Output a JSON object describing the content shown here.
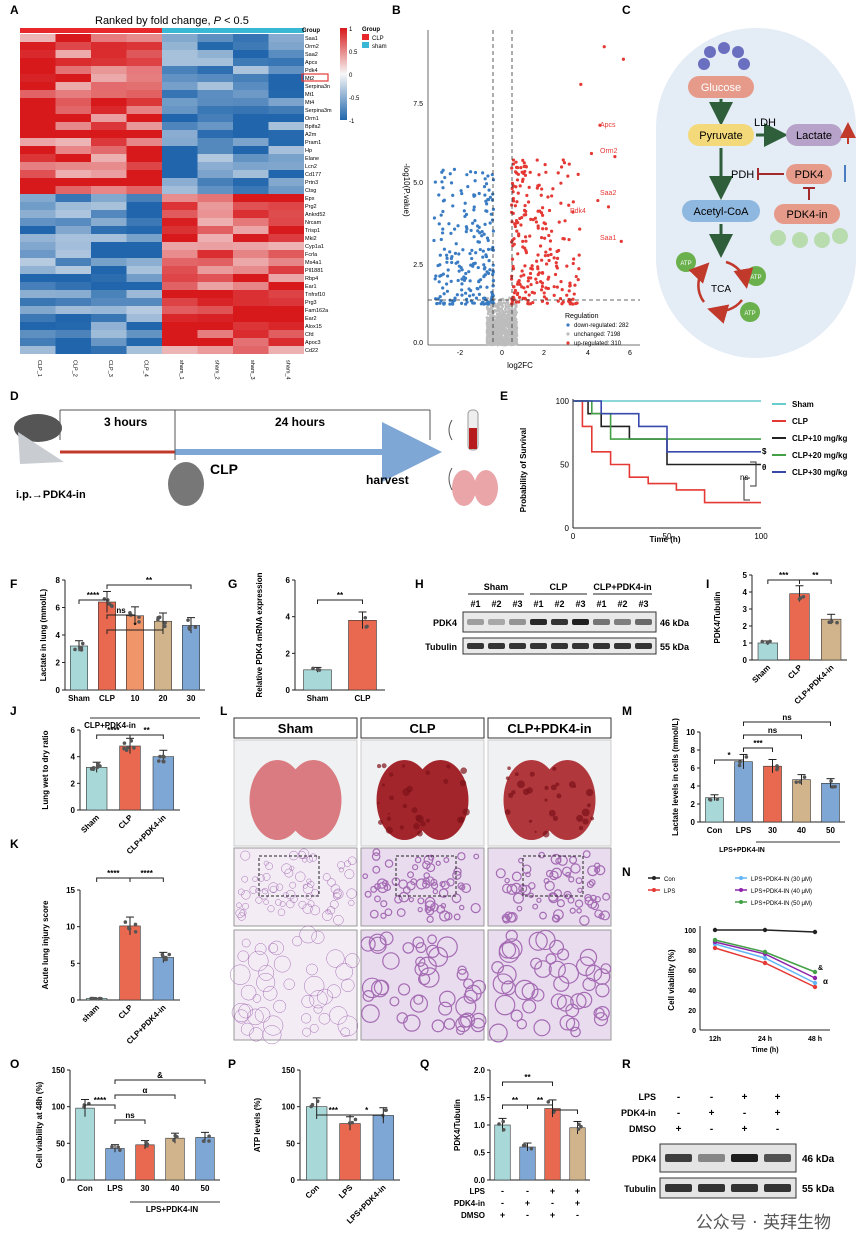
{
  "panels": {
    "A": {
      "label": "A",
      "title_pre": "Ranked by fold change,",
      "title_p": "P",
      "title_post": " < 0.5",
      "genes": [
        "Saa1",
        "Orm2",
        "Saa2",
        "Apcs",
        "Pdk4",
        "Mt2",
        "Serpina3n",
        "Mt1",
        "Mt4",
        "Serpina3m",
        "Orm1",
        "Bpifa2",
        "A2m",
        "Pram1",
        "Hp",
        "Elane",
        "Lcn2",
        "Cd177",
        "Prtn3",
        "Ctsg",
        "Epx",
        "Prg2",
        "Ankrd52",
        "Nrcam",
        "Trisp1",
        "Mki2",
        "Cyp1a1",
        "Fcrla",
        "Ms4a1",
        "Pll1881",
        "Rbp4",
        "Ear1",
        "Tnfrsf10",
        "Prg3",
        "Fam162a",
        "Ear2",
        "Alox15",
        "Cfd",
        "Apoc3",
        "Cd22"
      ],
      "samples": [
        "CLP_1",
        "CLP_2",
        "CLP_3",
        "CLP_4",
        "sham_1",
        "sham_2",
        "sham_3",
        "sham_4"
      ],
      "scale_ticks": [
        "1",
        "0.5",
        "0",
        "-0.5",
        "-1"
      ],
      "legend_title": "Group",
      "legend_items": [
        {
          "name": "CLP",
          "color": "#e8272a"
        },
        {
          "name": "sham",
          "color": "#39b8d6"
        }
      ],
      "group_label": "Group"
    },
    "B": {
      "label": "B",
      "ylabel": "-log10(P.value)",
      "xlabel": "log2FC",
      "xticks": [
        "-2",
        "0",
        "2",
        "4",
        "6"
      ],
      "yticks": [
        "0.0",
        "2.5",
        "5.0",
        "7.5"
      ],
      "annot": [
        "Apcs",
        "Orm2",
        "Saa2",
        "Pdk4",
        "Saa1"
      ],
      "legend_title": "Regulation",
      "legend": [
        "down-regulated: 282",
        "unchanged: 7198",
        "up-regulated: 310"
      ]
    },
    "C": {
      "label": "C",
      "nodes": {
        "glucose": "Glucose",
        "pyruvate": "Pyruvate",
        "lactate": "Lactate",
        "ldh": "LDH",
        "pdh": "PDH",
        "pdk4": "PDK4",
        "acetyl": "Acetyl-CoA",
        "inhib": "PDK4-in",
        "tca": "TCA",
        "atp": "ATP"
      }
    },
    "D": {
      "label": "D",
      "t1": "3 hours",
      "t2": "24 hours",
      "clp": "CLP",
      "harvest": "harvest",
      "ip": "i.p.→PDK4-in"
    },
    "E": {
      "label": "E",
      "ylabel": "Probability of Survival",
      "xlabel": "Time (h)",
      "xticks": [
        "0",
        "50",
        "100"
      ],
      "yticks": [
        "0",
        "50",
        "100"
      ],
      "legend": [
        {
          "name": "Sham",
          "color": "#66cccc"
        },
        {
          "name": "CLP",
          "color": "#e53935"
        },
        {
          "name": "CLP+10 mg/kg",
          "color": "#222222"
        },
        {
          "name": "CLP+20 mg/kg",
          "color": "#43a047"
        },
        {
          "name": "CLP+30 mg/kg",
          "color": "#3949ab"
        }
      ],
      "sig": [
        "$",
        "θ",
        "ns"
      ]
    },
    "F": {
      "label": "F",
      "ylabel": "Lactate in lung (mmol/L)",
      "yticks": [
        "0",
        "2",
        "4",
        "6",
        "8"
      ],
      "cats": [
        "Sham",
        "CLP",
        "10",
        "20",
        "30"
      ],
      "group": "CLP+PDK4-in",
      "sig": [
        "****",
        "ns",
        "*",
        "**"
      ]
    },
    "G": {
      "label": "G",
      "ylabel": "Relative PDK4 mRNA expression",
      "yticks": [
        "0",
        "2",
        "4",
        "6"
      ],
      "cats": [
        "Sham",
        "CLP"
      ],
      "sig": [
        "**"
      ]
    },
    "H": {
      "label": "H",
      "groups": [
        "Sham",
        "CLP",
        "CLP+PDK4-in"
      ],
      "lanes": [
        "#1",
        "#2",
        "#3",
        "#1",
        "#2",
        "#3",
        "#1",
        "#2",
        "#3"
      ],
      "rows": [
        "PDK4",
        "Tubulin"
      ],
      "kda": [
        "46 kDa",
        "55 kDa"
      ]
    },
    "I": {
      "label": "I",
      "ylabel": "PDK4/Tubulin",
      "yticks": [
        "0",
        "1",
        "2",
        "3",
        "4",
        "5"
      ],
      "cats": [
        "Sham",
        "CLP",
        "CLP+PDK4-in"
      ],
      "sig": [
        "***",
        "**"
      ]
    },
    "J": {
      "label": "J",
      "ylabel": "Lung wet to dry ratio",
      "yticks": [
        "0",
        "2",
        "4",
        "6"
      ],
      "cats": [
        "Sham",
        "CLP",
        "CLP+PDK4-in"
      ],
      "sig": [
        "****",
        "**"
      ]
    },
    "K": {
      "label": "K",
      "ylabel": "Acute lung injury score",
      "yticks": [
        "0",
        "5",
        "10",
        "15"
      ],
      "cats": [
        "sham",
        "CLP",
        "CLP+PDK4-in"
      ],
      "sig": [
        "****",
        "****"
      ]
    },
    "L": {
      "label": "L",
      "cols": [
        "Sham",
        "CLP",
        "CLP+PDK4-in"
      ]
    },
    "M": {
      "label": "M",
      "ylabel": "Lactate levels in cells (mmol/L)",
      "yticks": [
        "0",
        "2",
        "4",
        "6",
        "8",
        "10"
      ],
      "cats": [
        "Con",
        "LPS",
        "30",
        "40",
        "50"
      ],
      "group": "LPS+PDK4-IN",
      "sig": [
        "***",
        "ns",
        "ns",
        "*"
      ]
    },
    "N": {
      "label": "N",
      "ylabel": "Cell viability (%)",
      "xlabel": "Time (h)",
      "xticks": [
        "12h",
        "24 h",
        "48 h"
      ],
      "yticks": [
        "0",
        "20",
        "40",
        "60",
        "80",
        "100"
      ],
      "legend": [
        {
          "name": "Con",
          "color": "#222222"
        },
        {
          "name": "LPS",
          "color": "#e53935"
        },
        {
          "name": "LPS+PDK4-IN (30 μM)",
          "color": "#64b5f6"
        },
        {
          "name": "LPS+PDK4-IN (40 μM)",
          "color": "#8e24aa"
        },
        {
          "name": "LPS+PDK4-IN (50 μM)",
          "color": "#43a047"
        }
      ],
      "sig": [
        "&",
        "α"
      ]
    },
    "O": {
      "label": "O",
      "ylabel": "Cell viability at 48h (%)",
      "yticks": [
        "0",
        "50",
        "100",
        "150"
      ],
      "cats": [
        "Con",
        "LPS",
        "30",
        "40",
        "50"
      ],
      "group": "LPS+PDK4-IN",
      "sig": [
        "****",
        "ns",
        "α",
        "&"
      ]
    },
    "P": {
      "label": "P",
      "ylabel": "ATP levels (%)",
      "yticks": [
        "0",
        "50",
        "100",
        "150"
      ],
      "cats": [
        "Con",
        "LPS",
        "LPS+PDK4-in"
      ],
      "sig": [
        "***",
        "*"
      ]
    },
    "Q": {
      "label": "Q",
      "ylabel": "PDK4/Tubulin",
      "yticks": [
        "0.0",
        "0.5",
        "1.0",
        "1.5",
        "2.0"
      ],
      "rows": [
        {
          "name": "LPS",
          "vals": [
            "-",
            "-",
            "+",
            "+"
          ]
        },
        {
          "name": "PDK4-in",
          "vals": [
            "-",
            "+",
            "-",
            "+"
          ]
        },
        {
          "name": "DMSO",
          "vals": [
            "+",
            "-",
            "+",
            "-"
          ]
        }
      ],
      "sig": [
        "**",
        "**",
        "**"
      ]
    },
    "R": {
      "label": "R",
      "rows": [
        {
          "name": "LPS",
          "vals": [
            "-",
            "-",
            "+",
            "+"
          ]
        },
        {
          "name": "PDK4-in",
          "vals": [
            "-",
            "+",
            "-",
            "+"
          ]
        },
        {
          "name": "DMSO",
          "vals": [
            "+",
            "-",
            "+",
            "-"
          ]
        }
      ],
      "blots": [
        "PDK4",
        "Tubulin"
      ],
      "kda": [
        "46 kDa",
        "55 kDa"
      ]
    }
  },
  "watermark": "公众号 · 英拜生物",
  "chart_data": [
    {
      "type": "bar",
      "id": "F",
      "categories": [
        "Sham",
        "CLP",
        "10",
        "20",
        "30"
      ],
      "values": [
        3.2,
        6.4,
        5.4,
        5.0,
        4.7
      ],
      "ylabel": "Lactate in lung (mmol/L)",
      "ylim": [
        0,
        8
      ]
    },
    {
      "type": "bar",
      "id": "G",
      "categories": [
        "Sham",
        "CLP"
      ],
      "values": [
        1.1,
        3.8
      ],
      "ylabel": "Relative PDK4 mRNA expression",
      "ylim": [
        0,
        6
      ]
    },
    {
      "type": "bar",
      "id": "I",
      "categories": [
        "Sham",
        "CLP",
        "CLP+PDK4-in"
      ],
      "values": [
        1.0,
        3.9,
        2.4
      ],
      "ylabel": "PDK4/Tubulin",
      "ylim": [
        0,
        5
      ]
    },
    {
      "type": "bar",
      "id": "J",
      "categories": [
        "Sham",
        "CLP",
        "CLP+PDK4-in"
      ],
      "values": [
        3.2,
        4.8,
        4.0
      ],
      "ylabel": "Lung wet to dry ratio",
      "ylim": [
        0,
        6
      ]
    },
    {
      "type": "bar",
      "id": "K",
      "categories": [
        "sham",
        "CLP",
        "CLP+PDK4-in"
      ],
      "values": [
        0.2,
        10.1,
        5.8
      ],
      "ylabel": "Acute lung injury score",
      "ylim": [
        0,
        15
      ]
    },
    {
      "type": "bar",
      "id": "M",
      "categories": [
        "Con",
        "LPS",
        "30",
        "40",
        "50"
      ],
      "values": [
        2.7,
        6.7,
        6.2,
        4.7,
        4.3
      ],
      "ylabel": "Lactate levels in cells (mmol/L)",
      "ylim": [
        0,
        10
      ]
    },
    {
      "type": "bar",
      "id": "O",
      "categories": [
        "Con",
        "LPS",
        "30",
        "40",
        "50"
      ],
      "values": [
        98,
        43,
        48,
        57,
        58
      ],
      "ylabel": "Cell viability at 48h (%)",
      "ylim": [
        0,
        150
      ]
    },
    {
      "type": "bar",
      "id": "P",
      "categories": [
        "Con",
        "LPS",
        "LPS+PDK4-in"
      ],
      "values": [
        100,
        77,
        88
      ],
      "ylabel": "ATP levels (%)",
      "ylim": [
        0,
        150
      ]
    },
    {
      "type": "bar",
      "id": "Q",
      "categories": [
        "1",
        "2",
        "3",
        "4"
      ],
      "values": [
        1.0,
        0.6,
        1.3,
        0.95
      ],
      "ylabel": "PDK4/Tubulin",
      "ylim": [
        0,
        2
      ]
    },
    {
      "type": "line",
      "id": "N",
      "x": [
        "12h",
        "24 h",
        "48 h"
      ],
      "ylim": [
        0,
        100
      ],
      "series": [
        {
          "name": "Con",
          "values": [
            100,
            100,
            98
          ]
        },
        {
          "name": "LPS",
          "values": [
            82,
            67,
            43
          ]
        },
        {
          "name": "LPS+PDK4-IN (30 μM)",
          "values": [
            86,
            72,
            47
          ]
        },
        {
          "name": "LPS+PDK4-IN (40 μM)",
          "values": [
            88,
            76,
            52
          ]
        },
        {
          "name": "LPS+PDK4-IN (50 μM)",
          "values": [
            90,
            78,
            58
          ]
        }
      ]
    },
    {
      "type": "line",
      "id": "E",
      "xlabel": "Time (h)",
      "ylabel": "Probability of Survival",
      "ylim": [
        0,
        100
      ],
      "series": [
        {
          "name": "Sham",
          "x": [
            0,
            100
          ],
          "values": [
            100,
            100
          ]
        },
        {
          "name": "CLP",
          "x": [
            0,
            5,
            10,
            20,
            30,
            40,
            55,
            70,
            100
          ],
          "values": [
            100,
            80,
            60,
            50,
            40,
            35,
            30,
            20,
            20
          ]
        },
        {
          "name": "CLP+10 mg/kg",
          "x": [
            0,
            8,
            15,
            30,
            50,
            100
          ],
          "values": [
            100,
            90,
            80,
            70,
            50,
            50
          ]
        },
        {
          "name": "CLP+20 mg/kg",
          "x": [
            0,
            10,
            20,
            100
          ],
          "values": [
            100,
            90,
            70,
            70
          ]
        },
        {
          "name": "CLP+30 mg/kg",
          "x": [
            0,
            15,
            35,
            50,
            100
          ],
          "values": [
            100,
            90,
            80,
            60,
            60
          ]
        }
      ]
    }
  ]
}
